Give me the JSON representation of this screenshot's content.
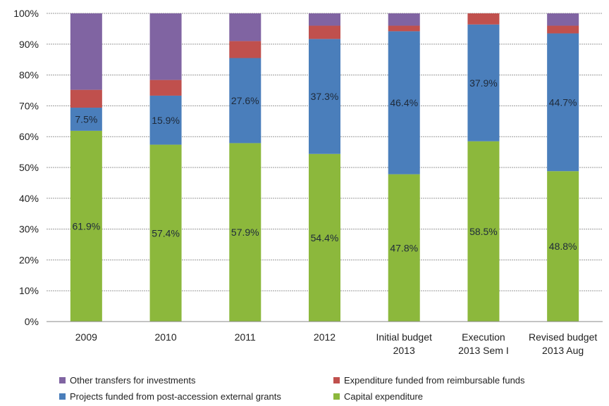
{
  "chart_data": {
    "type": "bar",
    "stacked": true,
    "percent_stacked": true,
    "categories": [
      [
        "2009"
      ],
      [
        "2010"
      ],
      [
        "2011"
      ],
      [
        "2012"
      ],
      [
        "Initial budget",
        "2013"
      ],
      [
        "Execution",
        "2013 Sem I"
      ],
      [
        "Revised budget",
        "2013 Aug"
      ]
    ],
    "y_ticks": [
      "0%",
      "10%",
      "20%",
      "30%",
      "40%",
      "50%",
      "60%",
      "70%",
      "80%",
      "90%",
      "100%"
    ],
    "ylim": [
      0,
      100
    ],
    "grid": true,
    "legend_position": "bottom",
    "series": [
      {
        "name": "Capital expenditure",
        "color": "#8cb83c",
        "values": [
          61.9,
          57.4,
          57.9,
          54.4,
          47.8,
          58.5,
          48.8
        ],
        "labels": [
          "61.9%",
          "57.4%",
          "57.9%",
          "54.4%",
          "47.8%",
          "58.5%",
          "48.8%"
        ]
      },
      {
        "name": "Projects funded from post-accession external grants",
        "color": "#4a7ebb",
        "values": [
          7.5,
          15.9,
          27.6,
          37.3,
          46.4,
          37.9,
          44.7
        ],
        "labels": [
          "7.5%",
          "15.9%",
          "27.6%",
          "37.3%",
          "46.4%",
          "37.9%",
          "44.7%"
        ]
      },
      {
        "name": "Expenditure funded from reimbursable funds",
        "color": "#c0504d",
        "values": [
          5.8,
          5.1,
          5.5,
          4.3,
          1.8,
          3.6,
          2.5
        ]
      },
      {
        "name": "Other transfers for investments",
        "color": "#8064a2",
        "values": [
          24.8,
          21.6,
          9.0,
          4.0,
          4.0,
          0.0,
          4.0
        ]
      }
    ],
    "legend_order": [
      3,
      2,
      1,
      0
    ]
  }
}
